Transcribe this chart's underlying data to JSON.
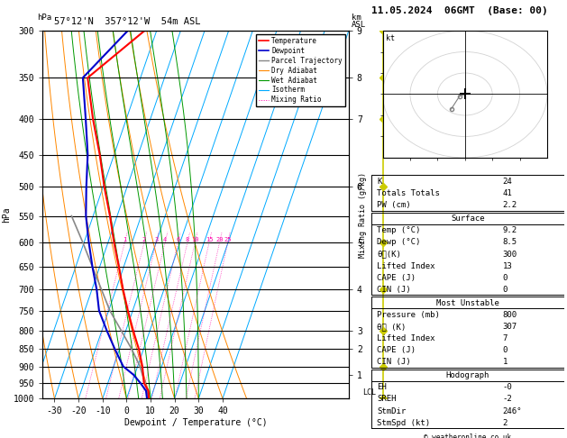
{
  "title_left": "57°12'N  357°12'W  54m ASL",
  "title_right": "11.05.2024  06GMT  (Base: 00)",
  "xlabel": "Dewpoint / Temperature (°C)",
  "ylabel_left": "hPa",
  "pressure_levels": [
    300,
    350,
    400,
    450,
    500,
    550,
    600,
    650,
    700,
    750,
    800,
    850,
    900,
    950,
    1000
  ],
  "pressure_labels": [
    "300",
    "350",
    "400",
    "450",
    "500",
    "550",
    "600",
    "650",
    "700",
    "750",
    "800",
    "850",
    "900",
    "950",
    "1000"
  ],
  "p_min": 300,
  "p_max": 1000,
  "temp_min": -35,
  "temp_max": 40,
  "skew": 35,
  "isotherms": [
    -40,
    -30,
    -20,
    -10,
    0,
    10,
    20,
    30,
    40
  ],
  "dry_adiabats_base": [
    -30,
    -20,
    -10,
    0,
    10,
    20,
    30,
    40,
    50
  ],
  "wet_adiabats_base": [
    0,
    5,
    10,
    15,
    20,
    25,
    30
  ],
  "mixing_ratios": [
    1,
    2,
    3,
    4,
    6,
    8,
    10,
    15,
    20,
    25
  ],
  "mixing_ratio_labels": [
    "1",
    "2",
    "3",
    "4",
    "6",
    "8",
    "10",
    "15",
    "20",
    "25"
  ],
  "temperature_profile": {
    "pressure": [
      1000,
      975,
      950,
      925,
      900,
      850,
      800,
      750,
      700,
      650,
      600,
      550,
      500,
      450,
      400,
      350,
      300
    ],
    "temp": [
      9.2,
      8.0,
      5.0,
      3.5,
      2.0,
      -2.0,
      -7.0,
      -12.0,
      -17.0,
      -22.0,
      -27.5,
      -33.0,
      -39.5,
      -46.0,
      -54.0,
      -62.0,
      -45.0
    ]
  },
  "dewpoint_profile": {
    "pressure": [
      1000,
      975,
      950,
      925,
      900,
      850,
      800,
      750,
      700,
      650,
      600,
      550,
      500,
      450,
      400,
      350,
      300
    ],
    "temp": [
      8.5,
      7.0,
      3.5,
      -0.5,
      -6.0,
      -12.0,
      -18.0,
      -24.0,
      -28.0,
      -33.0,
      -38.0,
      -43.0,
      -47.0,
      -51.0,
      -57.0,
      -64.0,
      -52.0
    ]
  },
  "parcel_profile": {
    "pressure": [
      1000,
      975,
      950,
      925,
      900,
      850,
      800,
      750,
      700,
      650,
      600,
      550
    ],
    "temp": [
      9.2,
      7.5,
      5.5,
      3.2,
      1.0,
      -5.0,
      -12.0,
      -19.5,
      -26.0,
      -33.0,
      -40.5,
      -49.0
    ]
  },
  "km_ticks": {
    "pressures": [
      925,
      850,
      800,
      700,
      600,
      500,
      400,
      350,
      300
    ],
    "km_labels": [
      "1",
      "2",
      "3",
      "4",
      "5",
      "6",
      "7",
      "8",
      "9"
    ]
  },
  "mr_label_pressure": 600,
  "colors": {
    "temperature": "#ff0000",
    "dewpoint": "#0000cc",
    "parcel": "#888888",
    "dry_adiabat": "#ff8800",
    "wet_adiabat": "#009900",
    "isotherm": "#00aaff",
    "mixing_ratio": "#ff00aa",
    "yellow": "#cccc00"
  },
  "stats_box1": [
    [
      "K",
      "24"
    ],
    [
      "Totals Totals",
      "41"
    ],
    [
      "PW (cm)",
      "2.2"
    ]
  ],
  "stats_surface_header": "Surface",
  "stats_box2": [
    [
      "Temp (°C)",
      "9.2"
    ],
    [
      "Dewp (°C)",
      "8.5"
    ],
    [
      "θᴄ(K)",
      "300"
    ],
    [
      "Lifted Index",
      "13"
    ],
    [
      "CAPE (J)",
      "0"
    ],
    [
      "CIN (J)",
      "0"
    ]
  ],
  "stats_mu_header": "Most Unstable",
  "stats_box3": [
    [
      "Pressure (mb)",
      "800"
    ],
    [
      "θᴄ (K)",
      "307"
    ],
    [
      "Lifted Index",
      "7"
    ],
    [
      "CAPE (J)",
      "0"
    ],
    [
      "CIN (J)",
      "1"
    ]
  ],
  "stats_hodo_header": "Hodograph",
  "stats_box4": [
    [
      "EH",
      "-0"
    ],
    [
      "SREH",
      "-2"
    ],
    [
      "StmDir",
      "246°"
    ],
    [
      "StmSpd (kt)",
      "2"
    ]
  ],
  "copyright": "© weatheronline.co.uk",
  "lcl_label": "LCL",
  "lcl_pressure": 993,
  "yellow_tick_pressures": [
    300,
    350,
    400,
    500,
    600,
    700,
    800,
    900,
    1000
  ]
}
